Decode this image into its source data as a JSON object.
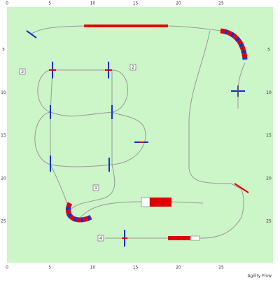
{
  "axis": {
    "top": [
      "0",
      "5",
      "10",
      "15",
      "20",
      "25"
    ],
    "bottom": [
      "0",
      "5",
      "10",
      "15",
      "20",
      "25"
    ],
    "left": [
      "5",
      "10",
      "15",
      "20",
      "25"
    ],
    "right": [
      "5",
      "10",
      "15",
      "20",
      "25"
    ]
  },
  "markers": [
    "1",
    "2",
    "3",
    "4"
  ],
  "footer": "Agility Flow"
}
